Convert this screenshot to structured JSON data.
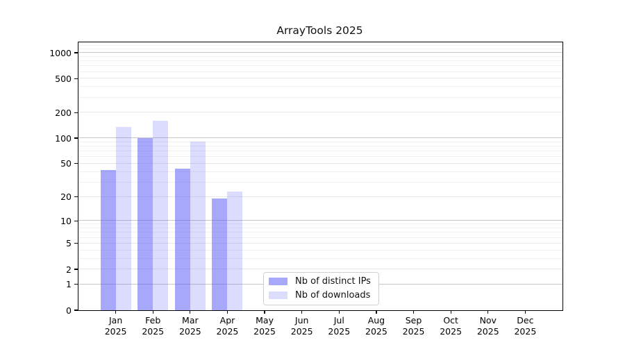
{
  "chart_data": {
    "type": "bar",
    "title": "ArrayTools 2025",
    "x_axis": {
      "months": [
        "Jan",
        "Feb",
        "Mar",
        "Apr",
        "May",
        "Jun",
        "Jul",
        "Aug",
        "Sep",
        "Oct",
        "Nov",
        "Dec"
      ],
      "year": "2025"
    },
    "y_axis": {
      "scale": "log10(value+1)",
      "ticks": [
        0,
        1,
        2,
        5,
        10,
        20,
        50,
        100,
        200,
        500,
        1000
      ],
      "ylim": [
        0,
        1300
      ],
      "grid": true,
      "decade_grid_color": "#c6c6c6",
      "labeled_grid_color": "#e8e8e8",
      "minor_grid_color": "#f0f0f0"
    },
    "series": [
      {
        "name": "Nb of distinct IPs",
        "legend_color": "#a7a7fb",
        "bar_color": "rgba(80,80,248,0.5)",
        "values": [
          42,
          100,
          44,
          19,
          null,
          null,
          null,
          null,
          null,
          null,
          null,
          null
        ]
      },
      {
        "name": "Nb of downloads",
        "legend_color": "#dcdcfd",
        "bar_color": "rgba(80,80,248,0.2)",
        "values": [
          135,
          160,
          92,
          23,
          null,
          null,
          null,
          null,
          null,
          null,
          null,
          null
        ]
      }
    ],
    "legend_position": "inside plot, lower center-left"
  }
}
